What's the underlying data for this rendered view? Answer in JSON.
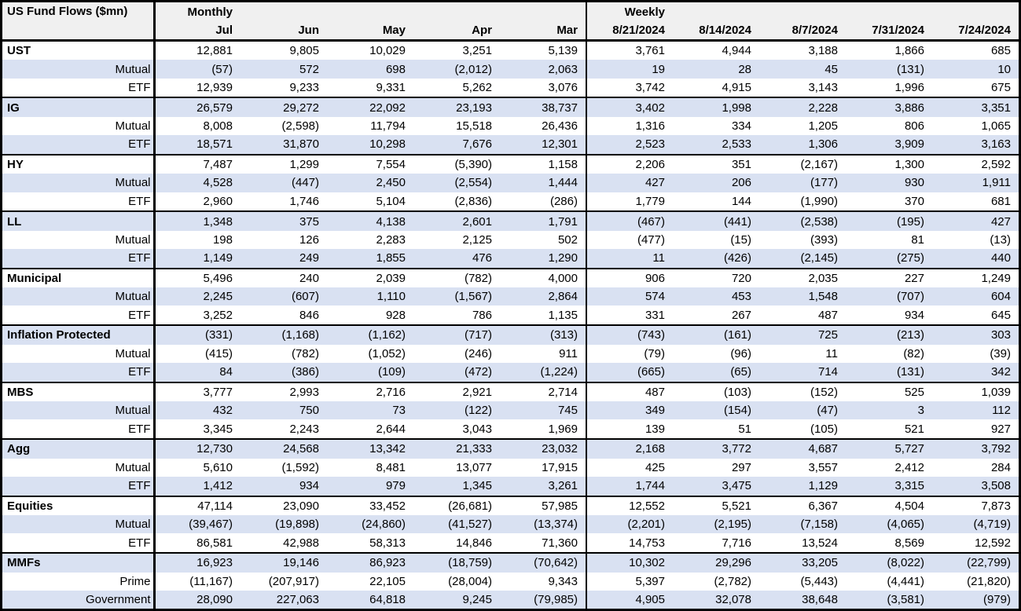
{
  "title": "US Fund Flows ($mn)",
  "sections": {
    "monthly": "Monthly",
    "weekly": "Weekly"
  },
  "monthly_columns": [
    "Jul",
    "Jun",
    "May",
    "Apr",
    "Mar"
  ],
  "weekly_columns": [
    "8/21/2024",
    "8/14/2024",
    "8/7/2024",
    "7/31/2024",
    "7/24/2024"
  ],
  "colors": {
    "row_shade": "#D9E1F2",
    "header_bg": "#F0F0F0",
    "border": "#000000"
  },
  "rows": [
    {
      "label": "UST",
      "level": "group",
      "monthly": [
        "12,881",
        "9,805",
        "10,029",
        "3,251",
        "5,139"
      ],
      "weekly": [
        "3,761",
        "4,944",
        "3,188",
        "1,866",
        "685"
      ]
    },
    {
      "label": "Mutual",
      "level": "sub",
      "monthly": [
        "(57)",
        "572",
        "698",
        "(2,012)",
        "2,063"
      ],
      "weekly": [
        "19",
        "28",
        "45",
        "(131)",
        "10"
      ]
    },
    {
      "label": "ETF",
      "level": "sub",
      "monthly": [
        "12,939",
        "9,233",
        "9,331",
        "5,262",
        "3,076"
      ],
      "weekly": [
        "3,742",
        "4,915",
        "3,143",
        "1,996",
        "675"
      ]
    },
    {
      "label": "IG",
      "level": "group",
      "monthly": [
        "26,579",
        "29,272",
        "22,092",
        "23,193",
        "38,737"
      ],
      "weekly": [
        "3,402",
        "1,998",
        "2,228",
        "3,886",
        "3,351"
      ]
    },
    {
      "label": "Mutual",
      "level": "sub",
      "monthly": [
        "8,008",
        "(2,598)",
        "11,794",
        "15,518",
        "26,436"
      ],
      "weekly": [
        "1,316",
        "334",
        "1,205",
        "806",
        "1,065"
      ]
    },
    {
      "label": "ETF",
      "level": "sub",
      "monthly": [
        "18,571",
        "31,870",
        "10,298",
        "7,676",
        "12,301"
      ],
      "weekly": [
        "2,523",
        "2,533",
        "1,306",
        "3,909",
        "3,163"
      ]
    },
    {
      "label": "HY",
      "level": "group",
      "monthly": [
        "7,487",
        "1,299",
        "7,554",
        "(5,390)",
        "1,158"
      ],
      "weekly": [
        "2,206",
        "351",
        "(2,167)",
        "1,300",
        "2,592"
      ]
    },
    {
      "label": "Mutual",
      "level": "sub",
      "monthly": [
        "4,528",
        "(447)",
        "2,450",
        "(2,554)",
        "1,444"
      ],
      "weekly": [
        "427",
        "206",
        "(177)",
        "930",
        "1,911"
      ]
    },
    {
      "label": "ETF",
      "level": "sub",
      "monthly": [
        "2,960",
        "1,746",
        "5,104",
        "(2,836)",
        "(286)"
      ],
      "weekly": [
        "1,779",
        "144",
        "(1,990)",
        "370",
        "681"
      ]
    },
    {
      "label": "LL",
      "level": "group",
      "monthly": [
        "1,348",
        "375",
        "4,138",
        "2,601",
        "1,791"
      ],
      "weekly": [
        "(467)",
        "(441)",
        "(2,538)",
        "(195)",
        "427"
      ]
    },
    {
      "label": "Mutual",
      "level": "sub",
      "monthly": [
        "198",
        "126",
        "2,283",
        "2,125",
        "502"
      ],
      "weekly": [
        "(477)",
        "(15)",
        "(393)",
        "81",
        "(13)"
      ]
    },
    {
      "label": "ETF",
      "level": "sub",
      "monthly": [
        "1,149",
        "249",
        "1,855",
        "476",
        "1,290"
      ],
      "weekly": [
        "11",
        "(426)",
        "(2,145)",
        "(275)",
        "440"
      ]
    },
    {
      "label": "Municipal",
      "level": "group",
      "monthly": [
        "5,496",
        "240",
        "2,039",
        "(782)",
        "4,000"
      ],
      "weekly": [
        "906",
        "720",
        "2,035",
        "227",
        "1,249"
      ]
    },
    {
      "label": "Mutual",
      "level": "sub",
      "monthly": [
        "2,245",
        "(607)",
        "1,110",
        "(1,567)",
        "2,864"
      ],
      "weekly": [
        "574",
        "453",
        "1,548",
        "(707)",
        "604"
      ]
    },
    {
      "label": "ETF",
      "level": "sub",
      "monthly": [
        "3,252",
        "846",
        "928",
        "786",
        "1,135"
      ],
      "weekly": [
        "331",
        "267",
        "487",
        "934",
        "645"
      ]
    },
    {
      "label": "Inflation Protected",
      "level": "group",
      "monthly": [
        "(331)",
        "(1,168)",
        "(1,162)",
        "(717)",
        "(313)"
      ],
      "weekly": [
        "(743)",
        "(161)",
        "725",
        "(213)",
        "303"
      ]
    },
    {
      "label": "Mutual",
      "level": "sub",
      "monthly": [
        "(415)",
        "(782)",
        "(1,052)",
        "(246)",
        "911"
      ],
      "weekly": [
        "(79)",
        "(96)",
        "11",
        "(82)",
        "(39)"
      ]
    },
    {
      "label": "ETF",
      "level": "sub",
      "monthly": [
        "84",
        "(386)",
        "(109)",
        "(472)",
        "(1,224)"
      ],
      "weekly": [
        "(665)",
        "(65)",
        "714",
        "(131)",
        "342"
      ]
    },
    {
      "label": "MBS",
      "level": "group",
      "monthly": [
        "3,777",
        "2,993",
        "2,716",
        "2,921",
        "2,714"
      ],
      "weekly": [
        "487",
        "(103)",
        "(152)",
        "525",
        "1,039"
      ]
    },
    {
      "label": "Mutual",
      "level": "sub",
      "monthly": [
        "432",
        "750",
        "73",
        "(122)",
        "745"
      ],
      "weekly": [
        "349",
        "(154)",
        "(47)",
        "3",
        "112"
      ]
    },
    {
      "label": "ETF",
      "level": "sub",
      "monthly": [
        "3,345",
        "2,243",
        "2,644",
        "3,043",
        "1,969"
      ],
      "weekly": [
        "139",
        "51",
        "(105)",
        "521",
        "927"
      ]
    },
    {
      "label": "Agg",
      "level": "group",
      "monthly": [
        "12,730",
        "24,568",
        "13,342",
        "21,333",
        "23,032"
      ],
      "weekly": [
        "2,168",
        "3,772",
        "4,687",
        "5,727",
        "3,792"
      ]
    },
    {
      "label": "Mutual",
      "level": "sub",
      "monthly": [
        "5,610",
        "(1,592)",
        "8,481",
        "13,077",
        "17,915"
      ],
      "weekly": [
        "425",
        "297",
        "3,557",
        "2,412",
        "284"
      ]
    },
    {
      "label": "ETF",
      "level": "sub",
      "monthly": [
        "1,412",
        "934",
        "979",
        "1,345",
        "3,261"
      ],
      "weekly": [
        "1,744",
        "3,475",
        "1,129",
        "3,315",
        "3,508"
      ]
    },
    {
      "label": "Equities",
      "level": "group",
      "monthly": [
        "47,114",
        "23,090",
        "33,452",
        "(26,681)",
        "57,985"
      ],
      "weekly": [
        "12,552",
        "5,521",
        "6,367",
        "4,504",
        "7,873"
      ]
    },
    {
      "label": "Mutual",
      "level": "sub",
      "monthly": [
        "(39,467)",
        "(19,898)",
        "(24,860)",
        "(41,527)",
        "(13,374)"
      ],
      "weekly": [
        "(2,201)",
        "(2,195)",
        "(7,158)",
        "(4,065)",
        "(4,719)"
      ]
    },
    {
      "label": "ETF",
      "level": "sub",
      "monthly": [
        "86,581",
        "42,988",
        "58,313",
        "14,846",
        "71,360"
      ],
      "weekly": [
        "14,753",
        "7,716",
        "13,524",
        "8,569",
        "12,592"
      ]
    },
    {
      "label": "MMFs",
      "level": "group",
      "monthly": [
        "16,923",
        "19,146",
        "86,923",
        "(18,759)",
        "(70,642)"
      ],
      "weekly": [
        "10,302",
        "29,296",
        "33,205",
        "(8,022)",
        "(22,799)"
      ]
    },
    {
      "label": "Prime",
      "level": "sub",
      "monthly": [
        "(11,167)",
        "(207,917)",
        "22,105",
        "(28,004)",
        "9,343"
      ],
      "weekly": [
        "5,397",
        "(2,782)",
        "(5,443)",
        "(4,441)",
        "(21,820)"
      ]
    },
    {
      "label": "Government",
      "level": "sub",
      "monthly": [
        "28,090",
        "227,063",
        "64,818",
        "9,245",
        "(79,985)"
      ],
      "weekly": [
        "4,905",
        "32,078",
        "38,648",
        "(3,581)",
        "(979)"
      ]
    }
  ]
}
